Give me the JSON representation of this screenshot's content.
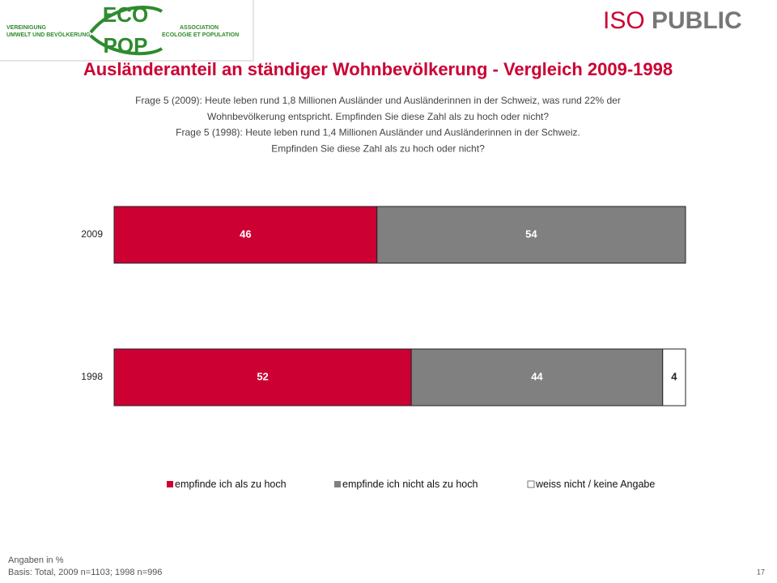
{
  "logo": {
    "eco": "ECO",
    "pop": "POP",
    "left": [
      "VEREINIGUNG",
      "UMWELT UND BEVÖLKERUNG"
    ],
    "right": [
      "ASSOCIATION",
      "ECOLOGIE ET POPULATION"
    ]
  },
  "brand": {
    "iso": "ISO",
    "public": "PUBLIC"
  },
  "chart_data": {
    "type": "stacked-barh",
    "title": "Ausländeranteil an ständiger Wohnbevölkerung - Vergleich 2009-1998",
    "subtitle": [
      "Frage 5 (2009): Heute leben rund 1,8 Millionen Ausländer und Ausländerinnen in der Schweiz, was rund 22% der",
      "Wohnbevölkerung entspricht. Empfinden Sie diese Zahl als zu hoch oder nicht?",
      "Frage 5 (1998): Heute leben rund 1,4 Millionen Ausländer und Ausländerinnen in der Schweiz.",
      "Empfinden Sie diese Zahl als zu hoch oder nicht?"
    ],
    "categories": [
      "2009",
      "1998"
    ],
    "series": [
      {
        "name": "empfinde ich als zu hoch",
        "color": "#cc0033",
        "values": [
          46,
          52
        ]
      },
      {
        "name": "empfinde ich nicht als zu hoch",
        "color": "#808080",
        "values": [
          54,
          44
        ]
      },
      {
        "name": "weiss nicht / keine Angabe",
        "color": "#ffffff",
        "values": [
          null,
          4
        ]
      }
    ]
  },
  "footer": {
    "notes": [
      "Angaben in %",
      "Basis: Total, 2009 n=1103; 1998 n=996"
    ],
    "page": "17"
  }
}
